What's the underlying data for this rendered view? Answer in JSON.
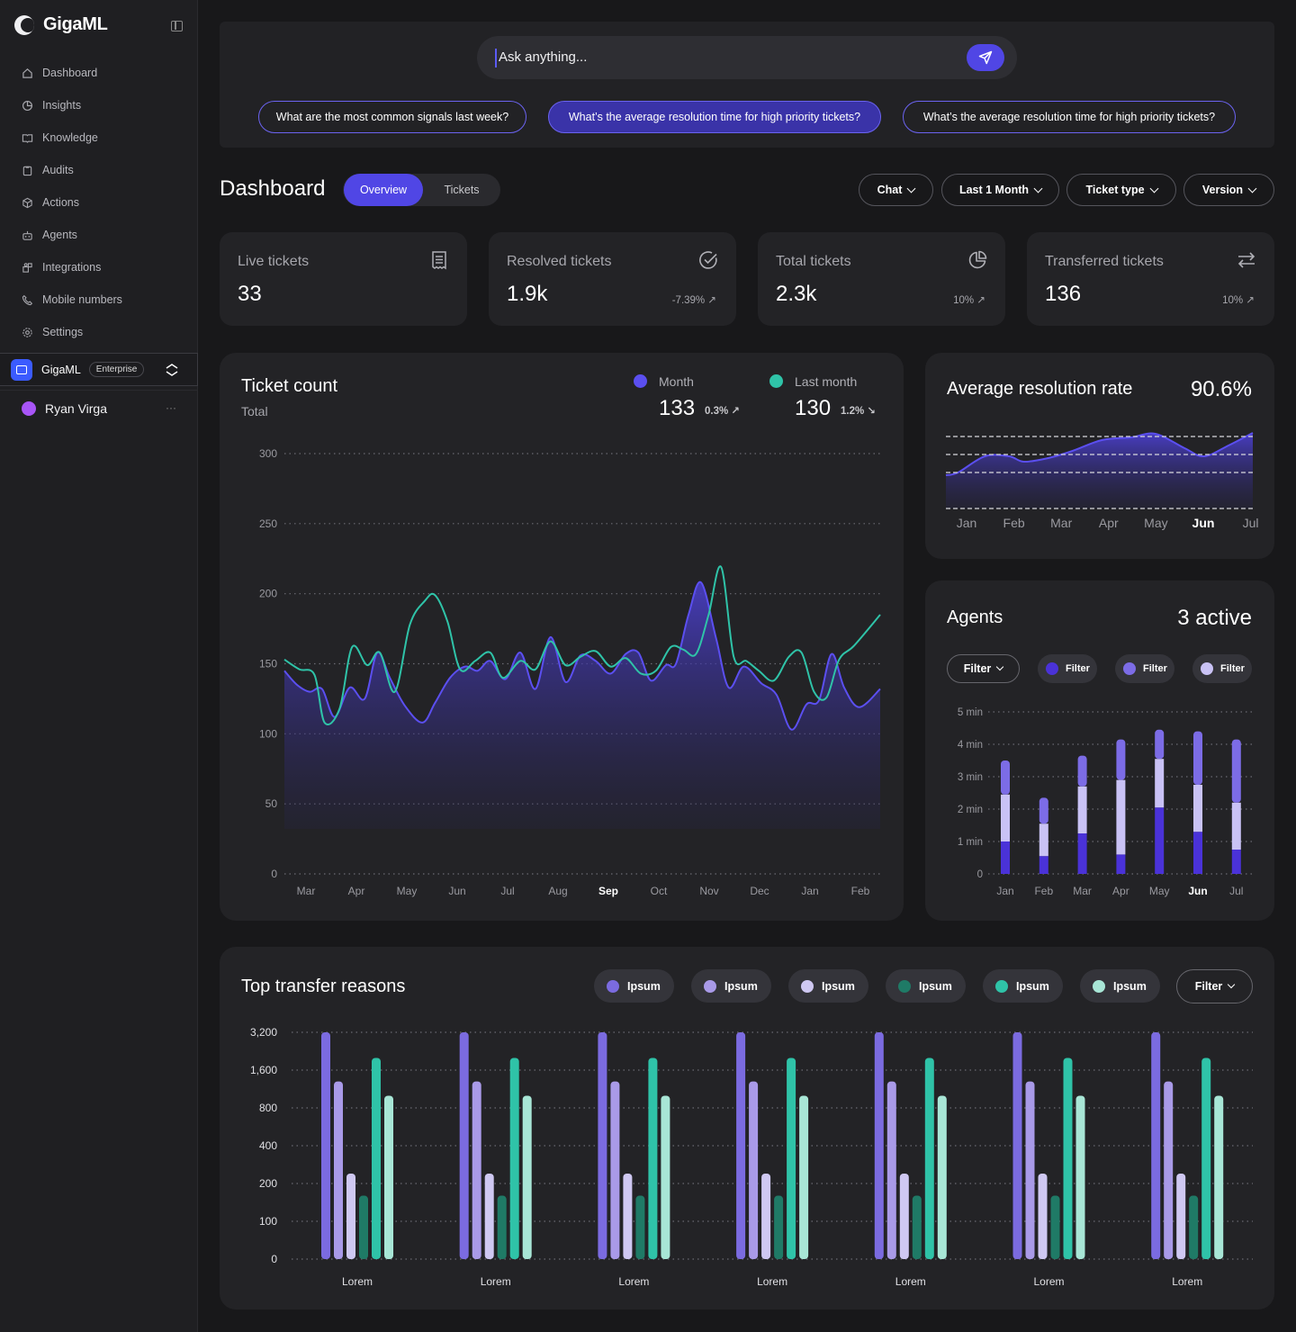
{
  "app": {
    "name": "GigaML"
  },
  "sidebar": {
    "items": [
      {
        "label": "Dashboard",
        "icon": "home-icon"
      },
      {
        "label": "Insights",
        "icon": "pie-icon"
      },
      {
        "label": "Knowledge",
        "icon": "book-icon"
      },
      {
        "label": "Audits",
        "icon": "clipboard-icon"
      },
      {
        "label": "Actions",
        "icon": "cube-icon"
      },
      {
        "label": "Agents",
        "icon": "robot-icon"
      },
      {
        "label": "Integrations",
        "icon": "puzzle-icon"
      },
      {
        "label": "Mobile numbers",
        "icon": "phone-icon"
      },
      {
        "label": "Settings",
        "icon": "gear-icon"
      }
    ],
    "org": {
      "name": "GigaML",
      "badge": "Enterprise"
    },
    "user": {
      "name": "Ryan Virga",
      "more": "···"
    }
  },
  "ask": {
    "placeholder": "Ask anything...",
    "suggestions": [
      "What are the most common signals last week?",
      "What’s the average resolution time for high priority tickets?",
      "What’s the average resolution time for high priority tickets?"
    ]
  },
  "dashboard": {
    "title": "Dashboard",
    "tabs": [
      "Overview",
      "Tickets"
    ],
    "active_tab": "Overview",
    "filters": [
      "Chat",
      "Last 1 Month",
      "Ticket type",
      "Version"
    ]
  },
  "kpis": [
    {
      "label": "Live tickets",
      "value": "33",
      "delta": "",
      "icon": "receipt-icon"
    },
    {
      "label": "Resolved tickets",
      "value": "1.9k",
      "delta": "-7.39% ↗",
      "icon": "check-circle-icon"
    },
    {
      "label": "Total tickets",
      "value": "2.3k",
      "delta": "10% ↗",
      "icon": "pie-chart-icon"
    },
    {
      "label": "Transferred tickets",
      "value": "136",
      "delta": "10% ↗",
      "icon": "swap-icon"
    }
  ],
  "ticket_count": {
    "title": "Ticket count",
    "subtitle": "Total",
    "legend": [
      {
        "name": "Month",
        "value": "133",
        "delta": "0.3% ↗",
        "color": "#5b4ff0"
      },
      {
        "name": "Last month",
        "value": "130",
        "delta": "1.2% ↘",
        "color": "#2fc3a8"
      }
    ]
  },
  "resolution": {
    "title": "Average resolution rate",
    "value": "90.6%"
  },
  "agents": {
    "title": "Agents",
    "active": "3 active",
    "filters": [
      {
        "label": "Filter",
        "dot": ""
      },
      {
        "label": "Filter",
        "dot": "#4a32d8"
      },
      {
        "label": "Filter",
        "dot": "#7c6ce6"
      },
      {
        "label": "Filter",
        "dot": "#c9c2f5"
      }
    ]
  },
  "transfer": {
    "title": "Top transfer reasons",
    "legend": [
      {
        "label": "Ipsum",
        "color": "#7b6be0"
      },
      {
        "label": "Ipsum",
        "color": "#a99ae8"
      },
      {
        "label": "Ipsum",
        "color": "#cfc8f2"
      },
      {
        "label": "Ipsum",
        "color": "#1f7a66"
      },
      {
        "label": "Ipsum",
        "color": "#2fc3a8"
      },
      {
        "label": "Ipsum",
        "color": "#a8e6d6"
      }
    ],
    "filter_label": "Filter"
  },
  "chart_data": [
    {
      "type": "area",
      "title": "Ticket count",
      "subtitle": "Total",
      "categories": [
        "Mar",
        "Apr",
        "May",
        "Jun",
        "Jul",
        "Aug",
        "Sep",
        "Oct",
        "Nov",
        "Dec",
        "Jan",
        "Feb"
      ],
      "highlight": "Sep",
      "ylim": [
        0,
        300
      ],
      "yticks": [
        0,
        50,
        100,
        150,
        200,
        250,
        300
      ],
      "series": [
        {
          "name": "Month",
          "color": "#5b4ff0",
          "fill": true,
          "x": [
            0,
            0.25,
            0.5,
            0.75,
            1,
            1.3,
            1.6,
            1.85,
            2.1,
            2.4,
            2.75,
            3,
            3.3,
            3.6,
            3.85,
            4.1,
            4.4,
            4.7,
            5,
            5.3,
            5.6,
            5.9,
            6.2,
            6.5,
            6.8,
            7.05,
            7.3,
            7.6,
            7.8,
            8.05,
            8.3,
            8.6,
            8.85,
            9.15,
            9.5,
            9.8,
            10.1,
            10.4,
            10.65,
            10.9,
            11.15,
            11.45,
            11.85
          ],
          "values": [
            145,
            135,
            130,
            132,
            112,
            133,
            125,
            158,
            140,
            120,
            108,
            122,
            140,
            148,
            145,
            152,
            139,
            158,
            132,
            169,
            137,
            156,
            152,
            143,
            157,
            158,
            138,
            149,
            150,
            185,
            208,
            168,
            133,
            148,
            136,
            128,
            103,
            121,
            124,
            157,
            133,
            119,
            132
          ]
        },
        {
          "name": "Last month",
          "color": "#2fc3a8",
          "fill": false,
          "x": [
            0,
            0.3,
            0.6,
            0.8,
            1.1,
            1.35,
            1.65,
            1.9,
            2.2,
            2.5,
            2.8,
            3,
            3.25,
            3.5,
            3.8,
            4.1,
            4.35,
            4.7,
            5,
            5.3,
            5.6,
            5.9,
            6.2,
            6.5,
            6.8,
            7.1,
            7.4,
            7.7,
            7.95,
            8.2,
            8.45,
            8.7,
            8.95,
            9.2,
            9.45,
            9.75,
            10.05,
            10.3,
            10.55,
            10.8,
            11.05,
            11.35,
            11.85
          ],
          "values": [
            153,
            146,
            142,
            108,
            118,
            162,
            149,
            158,
            130,
            178,
            195,
            199,
            180,
            146,
            152,
            158,
            140,
            152,
            146,
            166,
            149,
            155,
            159,
            148,
            154,
            143,
            145,
            162,
            160,
            157,
            185,
            219,
            155,
            152,
            145,
            138,
            155,
            158,
            130,
            126,
            153,
            163,
            185
          ]
        }
      ]
    },
    {
      "type": "area",
      "title": "Average resolution rate",
      "value": "90.6%",
      "categories": [
        "Jan",
        "Feb",
        "Mar",
        "Apr",
        "May",
        "Jun",
        "Jul"
      ],
      "highlight": "Jun",
      "ylim": [
        0,
        100
      ],
      "reference_lines": [
        80,
        60,
        40
      ],
      "series": [
        {
          "name": "Resolution",
          "color": "#5b4ff0",
          "x": [
            0,
            0.25,
            0.8,
            1.3,
            1.6,
            2.1,
            2.6,
            3.2,
            3.8,
            4.3,
            4.9,
            5.3,
            5.8,
            6.3
          ],
          "values": [
            37,
            40,
            58,
            58,
            52,
            56,
            64,
            76,
            79,
            83,
            67,
            58,
            70,
            84
          ]
        }
      ]
    },
    {
      "type": "bar",
      "title": "Agents",
      "categories": [
        "Jan",
        "Feb",
        "Mar",
        "Apr",
        "May",
        "Jun",
        "Jul"
      ],
      "highlight": "Jun",
      "ylim": [
        0,
        5
      ],
      "ytick_labels": [
        "0",
        "1 min",
        "2 min",
        "3 min",
        "4 min",
        "5 min"
      ],
      "stacked": true,
      "series": [
        {
          "name": "Base",
          "color": "#4a32d8",
          "values": [
            1.0,
            0.55,
            1.25,
            0.6,
            2.05,
            1.3,
            0.75
          ]
        },
        {
          "name": "Middle",
          "color": "#c9c2f5",
          "values": [
            1.45,
            1.0,
            1.45,
            2.3,
            1.5,
            1.45,
            1.45
          ]
        },
        {
          "name": "Top",
          "color": "#7c6ce6",
          "values": [
            1.05,
            0.8,
            0.95,
            1.25,
            0.9,
            1.65,
            1.95
          ]
        }
      ]
    },
    {
      "type": "bar",
      "title": "Top transfer reasons",
      "categories": [
        "Lorem",
        "Lorem",
        "Lorem",
        "Lorem",
        "Lorem",
        "Lorem",
        "Lorem"
      ],
      "ytick_labels": [
        "0",
        "100",
        "200",
        "400",
        "800",
        "1,600",
        "3,200"
      ],
      "scale": "log2-ticks",
      "series": [
        {
          "name": "Ipsum",
          "color": "#7b6be0",
          "values": [
            3200,
            3200,
            3200,
            3200,
            3200,
            3200,
            3200
          ]
        },
        {
          "name": "Ipsum",
          "color": "#a99ae8",
          "values": [
            1300,
            1300,
            1300,
            1300,
            1300,
            1300,
            1300
          ]
        },
        {
          "name": "Ipsum",
          "color": "#cfc8f2",
          "values": [
            240,
            240,
            240,
            240,
            240,
            240,
            240
          ]
        },
        {
          "name": "Ipsum",
          "color": "#1f7a66",
          "values": [
            160,
            160,
            160,
            160,
            160,
            160,
            160
          ]
        },
        {
          "name": "Ipsum",
          "color": "#2fc3a8",
          "values": [
            2000,
            2000,
            2000,
            2000,
            2000,
            2000,
            2000
          ]
        },
        {
          "name": "Ipsum",
          "color": "#a8e6d6",
          "values": [
            1000,
            1000,
            1000,
            1000,
            1000,
            1000,
            1000
          ]
        }
      ]
    }
  ]
}
